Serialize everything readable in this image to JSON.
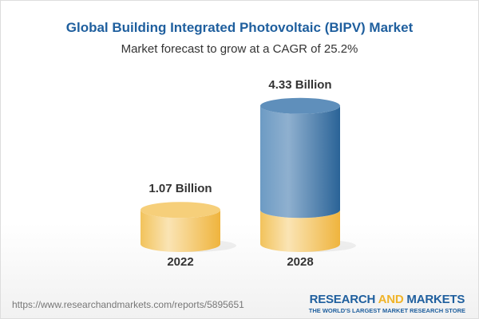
{
  "title": "Global Building Integrated Photovoltaic (BIPV) Market",
  "subtitle": "Market forecast to grow at a CAGR of 25.2%",
  "chart_data": {
    "type": "bar",
    "style": "3d-cylinder",
    "categories": [
      "2022",
      "2028"
    ],
    "values": [
      1.07,
      4.33
    ],
    "data_labels": [
      "1.07 Billion",
      "4.33 Billion"
    ],
    "unit": "Billion",
    "colors": {
      "base": "#f3c35a",
      "growth": "#3f7bb0"
    },
    "grid": false
  },
  "footer": {
    "url": "https://www.researchandmarkets.com/reports/5895651",
    "logo_part1": "RESEARCH ",
    "logo_part2": "AND",
    "logo_part3": " MARKETS",
    "logo_tagline": "THE WORLD'S LARGEST MARKET RESEARCH STORE"
  }
}
